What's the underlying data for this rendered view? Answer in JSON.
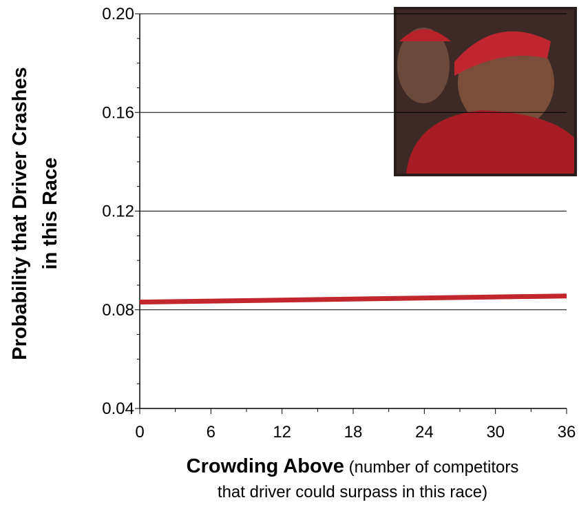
{
  "chart_data": {
    "type": "line",
    "y_label": [
      "Probability that Driver Crashes",
      "in this Race"
    ],
    "x_label": "Crowding Above",
    "x_label_note": [
      "(number of competitors",
      "that driver could surpass in this race)"
    ],
    "x": [
      0,
      36
    ],
    "series": [
      {
        "color": "#c1272d",
        "values": [
          0.0831,
          0.0856
        ]
      }
    ],
    "xlim": [
      0,
      36
    ],
    "xticks": [
      0,
      6,
      12,
      18,
      24,
      30,
      36
    ],
    "xminorticks": [
      3,
      9,
      15,
      21,
      27,
      33
    ],
    "ylim": [
      0.04,
      0.2
    ],
    "yticks": [
      0.04,
      0.08,
      0.12,
      0.16,
      {
        "value": 0.2,
        "label": "0.20"
      }
    ],
    "yminorticks": [
      0.05,
      0.06,
      0.07,
      0.09,
      0.1,
      0.11,
      0.13,
      0.14,
      0.15,
      0.17,
      0.18,
      0.19
    ],
    "grid": true
  }
}
